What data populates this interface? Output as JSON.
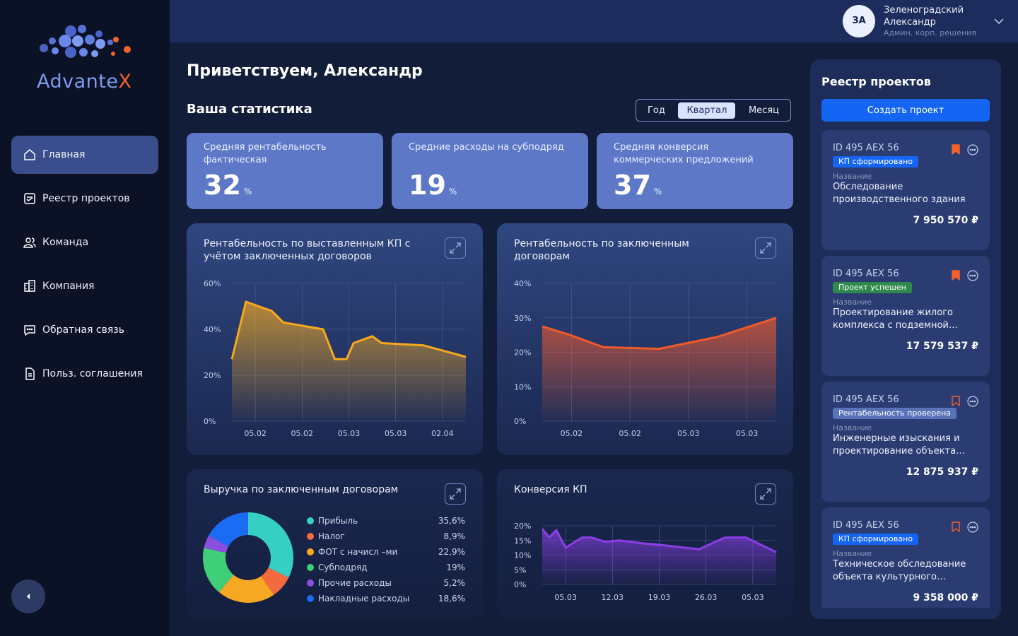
{
  "app": {
    "logo_part1": "Advante",
    "logo_part2": "X"
  },
  "nav": [
    {
      "label": "Главная",
      "icon": "home-icon",
      "active": true
    },
    {
      "label": "Реестр проектов",
      "icon": "registry-icon",
      "active": false
    },
    {
      "label": "Команда",
      "icon": "team-icon",
      "active": false
    },
    {
      "label": "Компания",
      "icon": "company-icon",
      "active": false
    },
    {
      "label": "Обратная связь",
      "icon": "feedback-icon",
      "active": false
    },
    {
      "label": "Польз. соглашения",
      "icon": "agreement-icon",
      "active": false
    }
  ],
  "user": {
    "initials": "ЗА",
    "name": "Зеленоградский Александр",
    "role": "Админ. корп. решения"
  },
  "greeting": "Приветствуем, Александр",
  "stats_title": "Ваша статистика",
  "period": {
    "options": [
      "Год",
      "Квартал",
      "Месяц"
    ],
    "selected": "Квартал"
  },
  "stats": [
    {
      "label": "Средняя рентабельность фактическая",
      "value": "32",
      "unit": "%"
    },
    {
      "label": "Средние расходы на субподряд",
      "value": "19",
      "unit": "%"
    },
    {
      "label": "Средняя конверсия коммерческих предложений",
      "value": "37",
      "unit": "%"
    }
  ],
  "chart_data": [
    {
      "type": "area",
      "title": "Рентабельность по выставленным КП с учётом заключенных договоров",
      "x_ticks": [
        "05.02",
        "05.02",
        "05.03",
        "05.03",
        "02.04"
      ],
      "y_ticks": [
        "60%",
        "40%",
        "20%",
        "0%"
      ],
      "ylim": [
        0,
        60
      ],
      "x": [
        0,
        0.06,
        0.17,
        0.22,
        0.39,
        0.44,
        0.49,
        0.52,
        0.6,
        0.64,
        0.82,
        1.0
      ],
      "values": [
        27,
        52,
        48,
        43,
        40,
        27,
        27,
        34,
        37,
        34,
        33,
        28
      ],
      "color": "#f5a91c",
      "grid": true
    },
    {
      "type": "area",
      "title": "Рентабельность по заключенным договорам",
      "x_ticks": [
        "05.02",
        "05.02",
        "05.03",
        "05.03"
      ],
      "y_ticks": [
        "40%",
        "30%",
        "20%",
        "10%",
        "0%"
      ],
      "ylim": [
        0,
        40
      ],
      "x": [
        0,
        0.12,
        0.26,
        0.5,
        0.75,
        1.0
      ],
      "values": [
        27.5,
        25,
        21.5,
        21,
        24.5,
        30
      ],
      "color": "#ee5a2c",
      "grid": true
    },
    {
      "type": "pie",
      "title": "Выручка по заключенным договорам",
      "slices": [
        {
          "label": "Прибыль",
          "value": 35.6,
          "display": "35,6%",
          "color": "#35cfc4"
        },
        {
          "label": "Налог",
          "value": 8.9,
          "display": "8,9%",
          "color": "#f26a3d"
        },
        {
          "label": "ФОТ с начисл –ми",
          "value": 22.9,
          "display": "22,9%",
          "color": "#f7a823"
        },
        {
          "label": "Субподряд",
          "value": 19,
          "display": "19%",
          "color": "#3fcf79"
        },
        {
          "label": "Прочие расходы",
          "value": 5.2,
          "display": "5,2%",
          "color": "#8b4fe0"
        },
        {
          "label": "Накладные расходы",
          "value": 18.6,
          "display": "18,6%",
          "color": "#1b6bf3"
        }
      ]
    },
    {
      "type": "area",
      "title": "Конверсия КП",
      "x_ticks": [
        "05.03",
        "12.03",
        "19.03",
        "26.03",
        "05.03"
      ],
      "y_ticks": [
        "20%",
        "15%",
        "10%",
        "5%",
        "0%"
      ],
      "ylim": [
        0,
        20
      ],
      "x": [
        0,
        0.03,
        0.06,
        0.1,
        0.17,
        0.21,
        0.27,
        0.33,
        0.43,
        0.5,
        0.67,
        0.78,
        0.87,
        1.0
      ],
      "values": [
        19,
        16,
        18.5,
        12.5,
        16,
        16,
        14.5,
        15,
        14,
        13.5,
        12,
        16,
        16,
        11
      ],
      "color": "#8b3ee6",
      "grid": true
    }
  ],
  "registry": {
    "title": "Реестр проектов",
    "create_label": "Создать проект",
    "name_label": "Название",
    "projects": [
      {
        "id": "ID 495 AEX 56",
        "status": "КП сформировано",
        "status_color": "#1565f5",
        "name": "Обследование производственного здания",
        "price": "7 950 570 ₽",
        "bookmarked": true
      },
      {
        "id": "ID 495 AEX 56",
        "status": "Проект успешен",
        "status_color": "#2e8a4a",
        "name": "Проектирование жилого комплекса с подземной…",
        "price": "17 579 537 ₽",
        "bookmarked": true
      },
      {
        "id": "ID 495 AEX 56",
        "status": "Рентабельность проверена",
        "status_color": "#5a72b8",
        "name": "Инженерные изыскания и проектирование объекта…",
        "price": "12 875 937 ₽",
        "bookmarked": false
      },
      {
        "id": "ID 495 AEX 56",
        "status": "КП сформировано",
        "status_color": "#1565f5",
        "name": "Техническое обследование объекта культурного…",
        "price": "9 358 000 ₽",
        "bookmarked": false
      }
    ]
  }
}
